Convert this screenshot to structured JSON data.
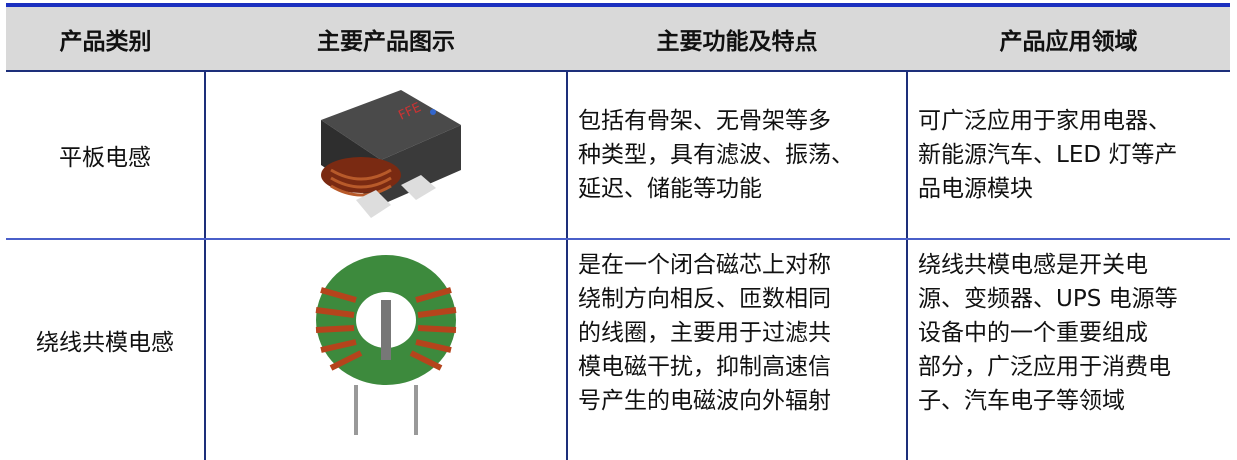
{
  "table": {
    "header": [
      "产品类别",
      "主要产品图示",
      "主要功能及特点",
      "产品应用领域"
    ],
    "rows": [
      {
        "category": "平板电感",
        "features": [
          "包括有骨架、无骨架等多",
          "种类型，具有滤波、振荡、",
          "延迟、储能等功能"
        ],
        "applications": [
          "可广泛应用于家用电器、",
          "新能源汽车、LED 灯等产",
          "品电源模块"
        ]
      },
      {
        "category": "绕线共模电感",
        "features": [
          "是在一个闭合磁芯上对称",
          "绕制方向相反、匝数相同",
          "的线圈，主要用于过滤共",
          "模电磁干扰，抑制高速信",
          "号产生的电磁波向外辐射"
        ],
        "applications": [
          "绕线共模电感是开关电",
          "源、变频器、UPS 电源等",
          "设备中的一个重要组成",
          "部分，广泛应用于消费电",
          "子、汽车电子等领域"
        ]
      }
    ]
  }
}
